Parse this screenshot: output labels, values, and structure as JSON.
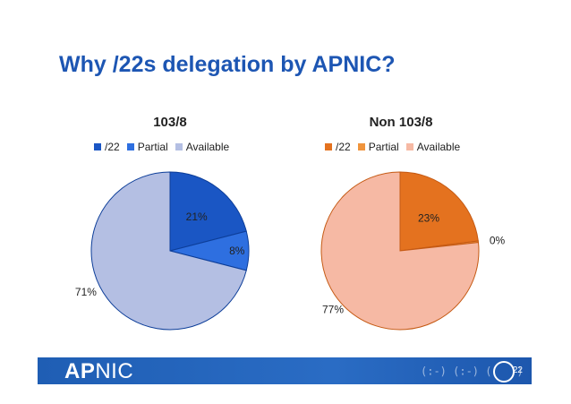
{
  "slide": {
    "title": "Why /22s delegation by APNIC?"
  },
  "chart_data": [
    {
      "type": "pie",
      "title": "103/8",
      "categories": [
        "/22",
        "Partial",
        "Available"
      ],
      "values": [
        21,
        8,
        71
      ],
      "labels": [
        "21%",
        "8%",
        "71%"
      ],
      "colors": [
        "#1a56c4",
        "#2e6fe0",
        "#b4bfe3"
      ],
      "legend": "top"
    },
    {
      "type": "pie",
      "title": "Non 103/8",
      "categories": [
        "/22",
        "Partial",
        "Available"
      ],
      "values": [
        23,
        0.3,
        76.7
      ],
      "labels": [
        "23%",
        "0%",
        "77%"
      ],
      "colors": [
        "#e4721f",
        "#f0943c",
        "#f6b9a4"
      ],
      "legend": "top"
    }
  ],
  "footer": {
    "logo_bold": "AP",
    "logo_rest": "NIC",
    "page_number": "22",
    "brand_icon": "apnic-swirl-icon"
  }
}
